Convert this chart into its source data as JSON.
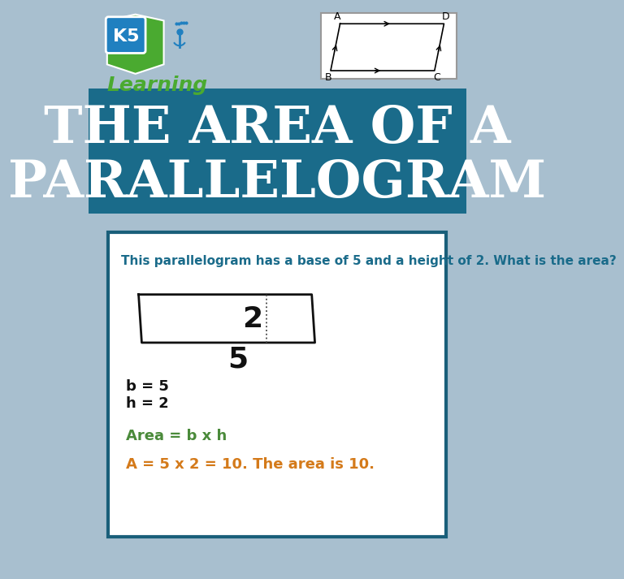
{
  "bg_color": "#a8bfcf",
  "banner_color": "#1a6b8a",
  "card_bg": "#ffffff",
  "card_border": "#1a5f7a",
  "title_line1": "THE AREA OF A",
  "title_line2": "PARALLELOGRAM",
  "title_color": "#ffffff",
  "question_text": "This parallelogram has a base of 5 and a height of 2. What is the area?",
  "question_color": "#1a6b8a",
  "formula_text": "Area = b x h",
  "formula_color": "#4a8a3a",
  "answer_text": "A = 5 x 2 = 10. The area is 10.",
  "answer_color": "#d47a1a",
  "dim_2_label": "2",
  "dim_5_label": "5",
  "bv_label": "b = 5",
  "hv_label": "h = 2",
  "logo_green": "#4aaa30",
  "logo_blue": "#2080c0",
  "logo_text": "Learning"
}
